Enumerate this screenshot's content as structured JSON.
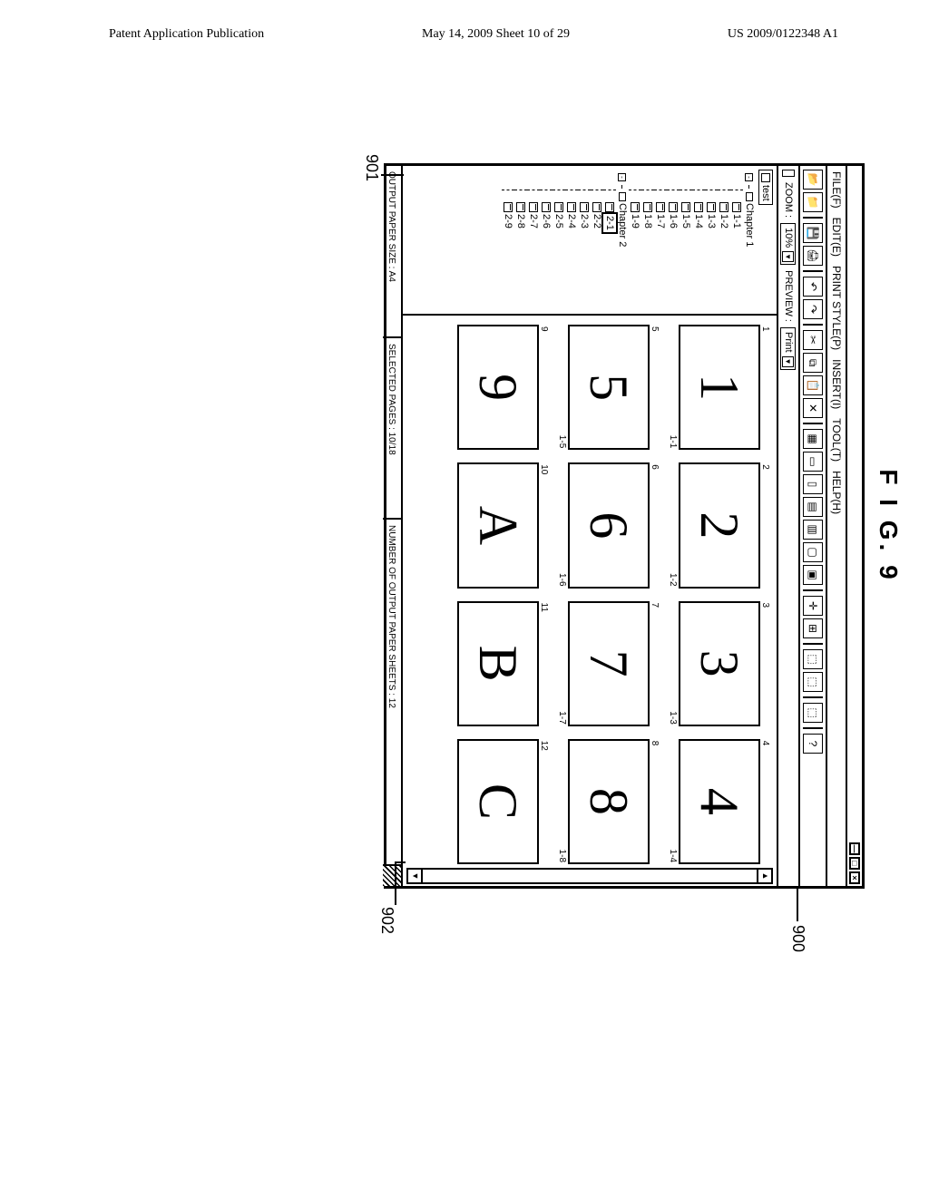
{
  "header": {
    "left": "Patent Application Publication",
    "center": "May 14, 2009  Sheet 10 of 29",
    "right": "US 2009/0122348 A1"
  },
  "figure_caption": "F I G.  9",
  "callouts": {
    "c900": "900",
    "c901": "901",
    "c902": "902"
  },
  "titlebar": {
    "min": "—",
    "max": "□",
    "close": "×"
  },
  "menus": [
    "FILE(F)",
    "EDIT(E)",
    "PRINT STYLE(P)",
    "INSERT(I)",
    "TOOL(T)",
    "HELP(H)"
  ],
  "subbar": {
    "zoom_label": "ZOOM :",
    "zoom_value": "10%",
    "preview_label": "PREVIEW :",
    "preview_value": "Print"
  },
  "tree": {
    "root": "test",
    "chapters": [
      {
        "label": "Chapter 1",
        "pages": [
          "1-1",
          "1-2",
          "1-3",
          "1-4",
          "1-5",
          "1-6",
          "1-7",
          "1-8",
          "1-9"
        ]
      },
      {
        "label": "Chapter 2",
        "pages": [
          "2-1",
          "2-2",
          "2-3",
          "2-4",
          "2-5",
          "2-6",
          "2-7",
          "2-8",
          "2-9"
        ],
        "selected": "2-1"
      }
    ]
  },
  "thumbs": [
    {
      "glyph": "1",
      "idx": "1",
      "sub": "1-1"
    },
    {
      "glyph": "2",
      "idx": "2",
      "sub": "1-2"
    },
    {
      "glyph": "3",
      "idx": "3",
      "sub": "1-3"
    },
    {
      "glyph": "4",
      "idx": "4",
      "sub": "1-4"
    },
    {
      "glyph": "5",
      "idx": "5",
      "sub": "1-5"
    },
    {
      "glyph": "6",
      "idx": "6",
      "sub": "1-6"
    },
    {
      "glyph": "7",
      "idx": "7",
      "sub": "1-7"
    },
    {
      "glyph": "8",
      "idx": "8",
      "sub": "1-8"
    },
    {
      "glyph": "9",
      "idx": "9",
      "sub": ""
    },
    {
      "glyph": "A",
      "idx": "10",
      "sub": ""
    },
    {
      "glyph": "B",
      "idx": "11",
      "sub": ""
    },
    {
      "glyph": "C",
      "idx": "12",
      "sub": ""
    }
  ],
  "status": {
    "paper_size": "OUTPUT PAPER SIZE : A4",
    "selected_pages": "SELECTED PAGES : 10/18",
    "output_sheets": "NUMBER OF OUTPUT PAPER SHEETS : 12"
  },
  "colors": {
    "border": "#000000",
    "bg": "#ffffff"
  }
}
